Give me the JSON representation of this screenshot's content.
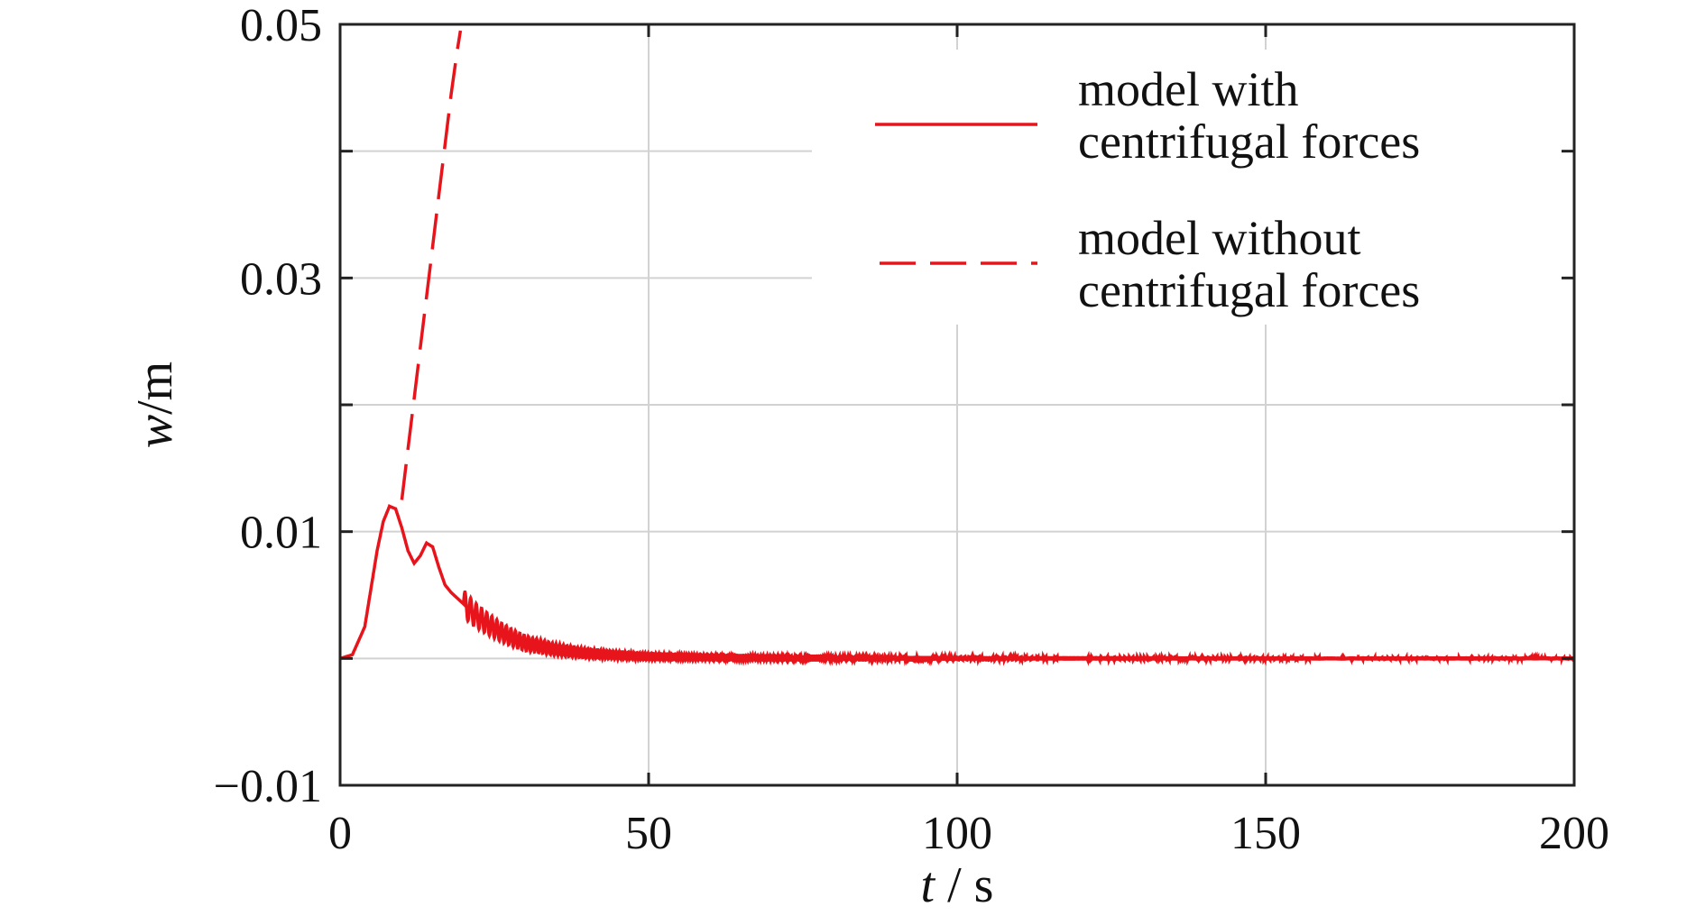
{
  "chart_data": {
    "type": "line",
    "title": "",
    "xlabel_var": "t",
    "xlabel_unit": " / s",
    "ylabel_var": "w",
    "ylabel_unit": "/m",
    "xlim": [
      0,
      200
    ],
    "ylim": [
      -0.01,
      0.05
    ],
    "x_ticks": [
      0,
      50,
      100,
      150,
      200
    ],
    "x_tick_labels": [
      "0",
      "50",
      "100",
      "150",
      "200"
    ],
    "y_ticks": [
      -0.01,
      0,
      0.01,
      0.02,
      0.03,
      0.04,
      0.05
    ],
    "y_tick_labels": [
      "−0.01",
      "",
      "0.01",
      "",
      "0.03",
      "",
      "0.05"
    ],
    "grid": true,
    "legend_position": "top-right",
    "series": [
      {
        "name": "model with\ncentrifugal forces",
        "line_style": "solid",
        "color": "#e8141c",
        "x": [
          0,
          2,
          4,
          5,
          6,
          7,
          8,
          9,
          10,
          11,
          12,
          13,
          14,
          15,
          16,
          17,
          18,
          20,
          22,
          24,
          26,
          28,
          30,
          35,
          40,
          45,
          50,
          60,
          70,
          80,
          100,
          150,
          200
        ],
        "y": [
          0,
          0.0003,
          0.0025,
          0.0055,
          0.0085,
          0.0108,
          0.012,
          0.0118,
          0.0103,
          0.0085,
          0.0075,
          0.0081,
          0.0091,
          0.0088,
          0.0072,
          0.0058,
          0.0052,
          0.0043,
          0.0034,
          0.0027,
          0.0021,
          0.0016,
          0.0012,
          0.0007,
          0.0004,
          0.00025,
          0.00015,
          8e-05,
          4e-05,
          2e-05,
          1e-05,
          0,
          0
        ],
        "oscillation_note": ""
      },
      {
        "name": "model without\ncentrifugal forces",
        "line_style": "dashed",
        "color": "#e8141c",
        "x": [
          10,
          11,
          12,
          13,
          14,
          15,
          16,
          17,
          18,
          19,
          19.5
        ],
        "y": [
          0.0125,
          0.0165,
          0.0205,
          0.0245,
          0.0285,
          0.0325,
          0.0365,
          0.0405,
          0.0445,
          0.048,
          0.0495
        ]
      }
    ]
  }
}
